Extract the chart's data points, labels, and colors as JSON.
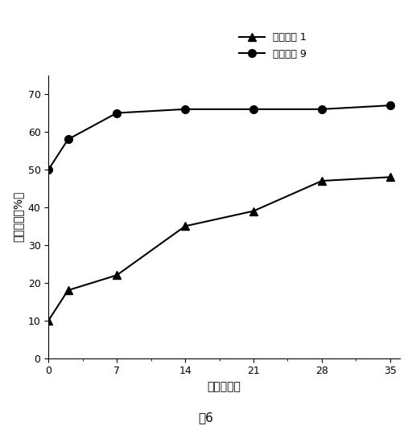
{
  "series1": {
    "label": "製剤番号 1",
    "x": [
      0,
      2,
      7,
      14,
      21,
      28,
      35
    ],
    "y": [
      10,
      18,
      22,
      35,
      39,
      47,
      48
    ],
    "marker": "^",
    "color": "#000000",
    "markersize": 7
  },
  "series2": {
    "label": "製剤番号 9",
    "x": [
      0,
      2,
      7,
      14,
      21,
      28,
      35
    ],
    "y": [
      50,
      58,
      65,
      66,
      66,
      66,
      67
    ],
    "marker": "o",
    "color": "#000000",
    "markersize": 7
  },
  "xlabel": "時間（日）",
  "ylabel": "累積放出（%）",
  "xlim": [
    0,
    36
  ],
  "ylim": [
    0,
    75
  ],
  "xticks": [
    0,
    7,
    14,
    21,
    28,
    35
  ],
  "yticks": [
    0,
    10,
    20,
    30,
    40,
    50,
    60,
    70
  ],
  "caption": "図6",
  "background_color": "#ffffff"
}
